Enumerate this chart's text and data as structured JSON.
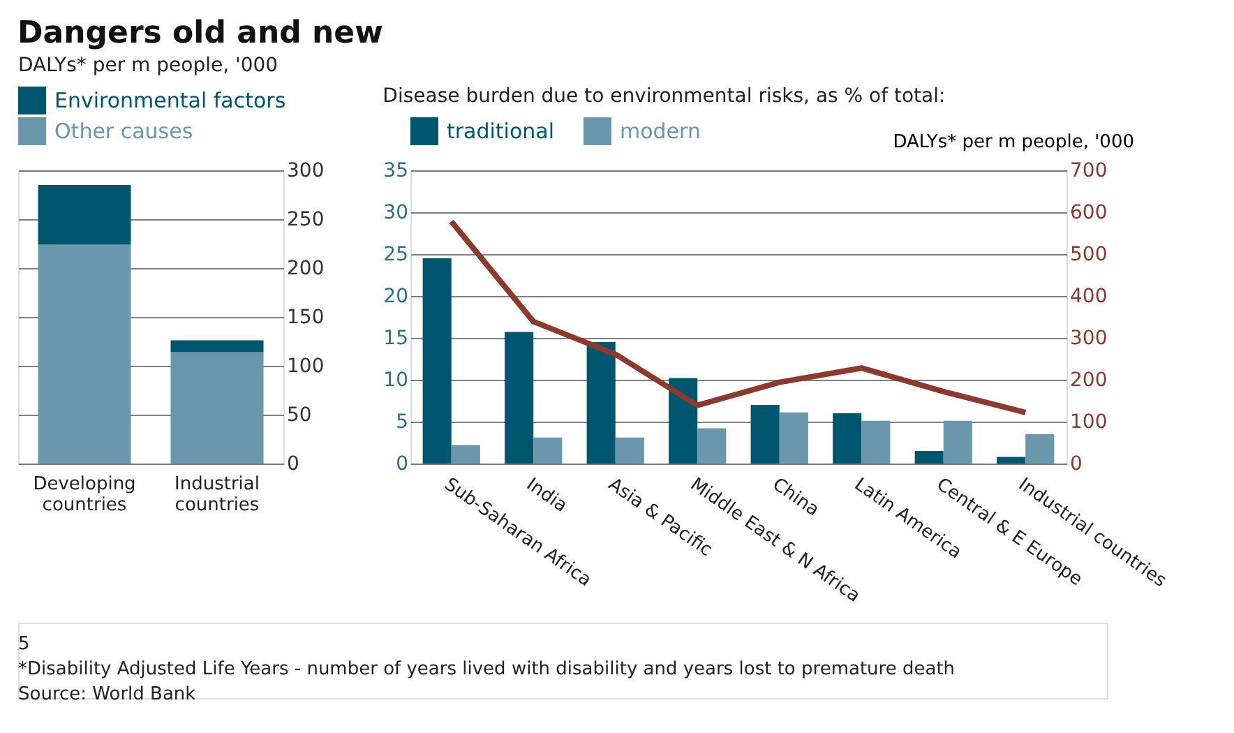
{
  "chart_data": [
    {
      "type": "bar",
      "title": "Dangers old and new",
      "ylabel": "DALYs* per m people, '000",
      "categories": [
        "Developing countries",
        "Industrial countries"
      ],
      "stacked": true,
      "series": [
        {
          "name": "Other causes",
          "color": "#6a97ab",
          "values": [
            224,
            114
          ]
        },
        {
          "name": "Environmental factors",
          "color": "#00566f",
          "values": [
            61,
            12
          ]
        }
      ],
      "ylim": [
        0,
        300
      ],
      "yticks": [
        0,
        50,
        100,
        150,
        200,
        250,
        300
      ],
      "grid": true,
      "legend": "top",
      "annotations": [
        "5",
        "*Disability Adjusted Life Years - number of years lived with disability and years lost to premature death",
        "Source: World Bank"
      ]
    },
    {
      "type": "bar",
      "ylabel": "Disease burden due to environmental risks, as % of total:",
      "y2label": "DALYs* per m people, '000",
      "categories": [
        "Sub-Saharan Africa",
        "India",
        "Asia & Pacific",
        "Middle East & N Africa",
        "China",
        "Latin America",
        "Central & E Europe",
        "Industrial countries"
      ],
      "series": [
        {
          "name": "traditional",
          "color": "#00566f",
          "values": [
            24.5,
            15.7,
            14.5,
            10.2,
            7,
            6,
            1.5,
            0.8
          ]
        },
        {
          "name": "modern",
          "color": "#6a97ab",
          "values": [
            2.2,
            3.1,
            3.1,
            4.2,
            6.1,
            5.1,
            5.1,
            3.5
          ]
        },
        {
          "type": "line",
          "axis": "y2",
          "color": "#8b3a2e",
          "values": [
            578,
            339,
            261,
            139,
            194,
            228,
            172,
            122
          ]
        }
      ],
      "ylim": [
        0,
        35
      ],
      "yticks": [
        0,
        5,
        10,
        15,
        20,
        25,
        30,
        35
      ],
      "y2lim": [
        0,
        700
      ],
      "y2ticks": [
        0,
        100,
        200,
        300,
        400,
        500,
        600,
        700
      ],
      "grid": true,
      "legend": "top"
    }
  ]
}
